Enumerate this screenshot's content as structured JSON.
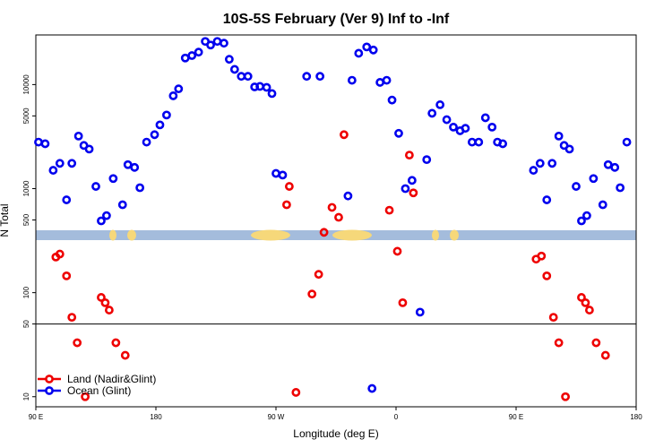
{
  "chart_data": {
    "type": "scatter",
    "title": "10S-5S February (Ver 9)   Inf to -Inf",
    "xlabel": "Longitude (deg E)",
    "ylabel": "N Total",
    "y_scale": "log",
    "ylim": [
      8,
      30000
    ],
    "x_ticks": [
      {
        "value": 90,
        "label": "90 E"
      },
      {
        "value": 180,
        "label": "180"
      },
      {
        "value": 270,
        "label": "90 W"
      },
      {
        "value": 360,
        "label": "0"
      },
      {
        "value": 450,
        "label": "90 E"
      },
      {
        "value": 540,
        "label": "180"
      }
    ],
    "y_ticks": [
      {
        "value": 10,
        "label": "10"
      },
      {
        "value": 50,
        "label": "50"
      },
      {
        "value": 100,
        "label": "100"
      },
      {
        "value": 500,
        "label": "500"
      },
      {
        "value": 1000,
        "label": "1000"
      },
      {
        "value": 5000,
        "label": "5000"
      },
      {
        "value": 10000,
        "label": "10000"
      }
    ],
    "reference_line": 50,
    "legend": {
      "position": "bottom-left",
      "entries": [
        {
          "label": "Land (Nadir&Glint)",
          "color": "#ee0000"
        },
        {
          "label": "Ocean (Glint)",
          "color": "#0000ee"
        }
      ]
    },
    "map_strip_colors": {
      "ocean": "#a4bcdc",
      "land": "#f6d87a"
    },
    "series": [
      {
        "name": "Land (Nadir&Glint)",
        "color": "#ee0000",
        "points": [
          [
            105,
            220
          ],
          [
            108,
            235
          ],
          [
            113,
            145
          ],
          [
            117,
            58
          ],
          [
            121,
            33
          ],
          [
            127,
            10
          ],
          [
            139,
            90
          ],
          [
            142,
            80
          ],
          [
            145,
            68
          ],
          [
            150,
            33
          ],
          [
            157,
            25
          ],
          [
            278,
            700
          ],
          [
            280,
            1050
          ],
          [
            285,
            11
          ],
          [
            297,
            97
          ],
          [
            302,
            150
          ],
          [
            306,
            380
          ],
          [
            312,
            660
          ],
          [
            317,
            530
          ],
          [
            321,
            3300
          ],
          [
            355,
            620
          ],
          [
            361,
            250
          ],
          [
            365,
            80
          ],
          [
            370,
            2100
          ],
          [
            373,
            910
          ],
          [
            465,
            210
          ],
          [
            469,
            225
          ],
          [
            473,
            145
          ],
          [
            478,
            58
          ],
          [
            482,
            33
          ],
          [
            487,
            10
          ],
          [
            499,
            90
          ],
          [
            502,
            80
          ],
          [
            505,
            68
          ],
          [
            510,
            33
          ],
          [
            517,
            25
          ]
        ]
      },
      {
        "name": "Ocean (Glint)",
        "color": "#0000ee",
        "points": [
          [
            92,
            2800
          ],
          [
            97,
            2700
          ],
          [
            103,
            1500
          ],
          [
            108,
            1750
          ],
          [
            113,
            780
          ],
          [
            117,
            1750
          ],
          [
            122,
            3200
          ],
          [
            126,
            2600
          ],
          [
            130,
            2400
          ],
          [
            135,
            1050
          ],
          [
            139,
            490
          ],
          [
            143,
            550
          ],
          [
            148,
            1250
          ],
          [
            155,
            700
          ],
          [
            159,
            1700
          ],
          [
            164,
            1600
          ],
          [
            168,
            1020
          ],
          [
            173,
            2800
          ],
          [
            179,
            3300
          ],
          [
            183,
            4100
          ],
          [
            188,
            5100
          ],
          [
            193,
            7800
          ],
          [
            197,
            9100
          ],
          [
            202,
            18000
          ],
          [
            207,
            19000
          ],
          [
            212,
            20500
          ],
          [
            217,
            26000
          ],
          [
            221,
            24000
          ],
          [
            226,
            26000
          ],
          [
            231,
            25000
          ],
          [
            235,
            17500
          ],
          [
            239,
            14000
          ],
          [
            244,
            12000
          ],
          [
            249,
            12000
          ],
          [
            254,
            9500
          ],
          [
            258,
            9600
          ],
          [
            263,
            9400
          ],
          [
            267,
            8200
          ],
          [
            270,
            1400
          ],
          [
            275,
            1350
          ],
          [
            293,
            12000
          ],
          [
            303,
            12000
          ],
          [
            324,
            850
          ],
          [
            327,
            11000
          ],
          [
            332,
            20000
          ],
          [
            338,
            23000
          ],
          [
            343,
            21500
          ],
          [
            348,
            10500
          ],
          [
            353,
            11000
          ],
          [
            357,
            7100
          ],
          [
            362,
            3400
          ],
          [
            367,
            1000
          ],
          [
            372,
            1200
          ],
          [
            378,
            65
          ],
          [
            383,
            1900
          ],
          [
            387,
            5300
          ],
          [
            393,
            6400
          ],
          [
            398,
            4600
          ],
          [
            403,
            3900
          ],
          [
            408,
            3600
          ],
          [
            412,
            3800
          ],
          [
            417,
            2800
          ],
          [
            422,
            2800
          ],
          [
            427,
            4800
          ],
          [
            432,
            3900
          ],
          [
            436,
            2800
          ],
          [
            440,
            2700
          ],
          [
            342,
            12
          ],
          [
            463,
            1500
          ],
          [
            468,
            1750
          ],
          [
            473,
            780
          ],
          [
            477,
            1750
          ],
          [
            482,
            3200
          ],
          [
            486,
            2600
          ],
          [
            490,
            2400
          ],
          [
            495,
            1050
          ],
          [
            499,
            490
          ],
          [
            503,
            550
          ],
          [
            508,
            1250
          ],
          [
            515,
            700
          ],
          [
            519,
            1700
          ],
          [
            524,
            1600
          ],
          [
            528,
            1020
          ],
          [
            533,
            2800
          ]
        ]
      }
    ]
  }
}
